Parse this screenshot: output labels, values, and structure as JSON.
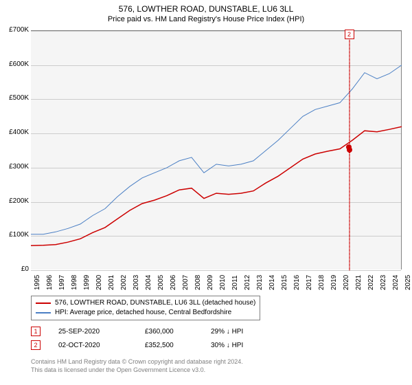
{
  "title": "576, LOWTHER ROAD, DUNSTABLE, LU6 3LL",
  "subtitle": "Price paid vs. HM Land Registry's House Price Index (HPI)",
  "chart": {
    "type": "line",
    "background_color": "#f5f5f5",
    "grid_color": "#cccccc",
    "axis_color": "#808080",
    "ylim": [
      0,
      700000
    ],
    "ytick_step": 100000,
    "y_labels": [
      "£0",
      "£100K",
      "£200K",
      "£300K",
      "£400K",
      "£500K",
      "£600K",
      "£700K"
    ],
    "x_years": [
      1995,
      1996,
      1997,
      1998,
      1999,
      2000,
      2001,
      2002,
      2003,
      2004,
      2005,
      2006,
      2007,
      2008,
      2009,
      2010,
      2011,
      2012,
      2013,
      2014,
      2015,
      2016,
      2017,
      2018,
      2019,
      2020,
      2021,
      2022,
      2023,
      2024,
      2025
    ],
    "series": [
      {
        "name": "576, LOWTHER ROAD, DUNSTABLE, LU6 3LL (detached house)",
        "color": "#cc0000",
        "line_width": 1.5,
        "points": [
          [
            1995,
            72000
          ],
          [
            1996,
            73000
          ],
          [
            1997,
            75000
          ],
          [
            1998,
            82000
          ],
          [
            1999,
            92000
          ],
          [
            2000,
            110000
          ],
          [
            2001,
            125000
          ],
          [
            2002,
            150000
          ],
          [
            2003,
            175000
          ],
          [
            2004,
            195000
          ],
          [
            2005,
            205000
          ],
          [
            2006,
            218000
          ],
          [
            2007,
            235000
          ],
          [
            2008,
            240000
          ],
          [
            2009,
            210000
          ],
          [
            2010,
            225000
          ],
          [
            2011,
            222000
          ],
          [
            2012,
            225000
          ],
          [
            2013,
            232000
          ],
          [
            2014,
            255000
          ],
          [
            2015,
            275000
          ],
          [
            2016,
            300000
          ],
          [
            2017,
            325000
          ],
          [
            2018,
            340000
          ],
          [
            2019,
            348000
          ],
          [
            2020,
            355000
          ],
          [
            2021,
            380000
          ],
          [
            2022,
            408000
          ],
          [
            2023,
            405000
          ],
          [
            2024,
            412000
          ],
          [
            2025,
            420000
          ]
        ]
      },
      {
        "name": "HPI: Average price, detached house, Central Bedfordshire",
        "color": "#4a7fc4",
        "line_width": 1,
        "points": [
          [
            1995,
            105000
          ],
          [
            1996,
            105000
          ],
          [
            1997,
            112000
          ],
          [
            1998,
            122000
          ],
          [
            1999,
            135000
          ],
          [
            2000,
            160000
          ],
          [
            2001,
            180000
          ],
          [
            2002,
            215000
          ],
          [
            2003,
            245000
          ],
          [
            2004,
            270000
          ],
          [
            2005,
            285000
          ],
          [
            2006,
            300000
          ],
          [
            2007,
            320000
          ],
          [
            2008,
            330000
          ],
          [
            2009,
            285000
          ],
          [
            2010,
            310000
          ],
          [
            2011,
            305000
          ],
          [
            2012,
            310000
          ],
          [
            2013,
            320000
          ],
          [
            2014,
            350000
          ],
          [
            2015,
            380000
          ],
          [
            2016,
            415000
          ],
          [
            2017,
            450000
          ],
          [
            2018,
            470000
          ],
          [
            2019,
            480000
          ],
          [
            2020,
            490000
          ],
          [
            2021,
            530000
          ],
          [
            2022,
            578000
          ],
          [
            2023,
            560000
          ],
          [
            2024,
            575000
          ],
          [
            2025,
            600000
          ]
        ]
      }
    ],
    "markers": [
      {
        "label": "1",
        "year": 2020.73,
        "price": 360000,
        "color": "#cc0000",
        "show_box": false,
        "show_dot": true
      },
      {
        "label": "2",
        "year": 2020.75,
        "price": 352500,
        "color": "#cc0000",
        "show_box": true,
        "show_dot": true
      }
    ]
  },
  "legend": {
    "rows": [
      {
        "color": "#cc0000",
        "label": "576, LOWTHER ROAD, DUNSTABLE, LU6 3LL (detached house)"
      },
      {
        "color": "#4a7fc4",
        "label": "HPI: Average price, detached house, Central Bedfordshire"
      }
    ]
  },
  "events": [
    {
      "num": "1",
      "color": "#cc0000",
      "date": "25-SEP-2020",
      "price": "£360,000",
      "pct": "29% ↓ HPI"
    },
    {
      "num": "2",
      "color": "#cc0000",
      "date": "02-OCT-2020",
      "price": "£352,500",
      "pct": "30% ↓ HPI"
    }
  ],
  "attribution": {
    "line1": "Contains HM Land Registry data © Crown copyright and database right 2024.",
    "line2": "This data is licensed under the Open Government Licence v3.0."
  }
}
